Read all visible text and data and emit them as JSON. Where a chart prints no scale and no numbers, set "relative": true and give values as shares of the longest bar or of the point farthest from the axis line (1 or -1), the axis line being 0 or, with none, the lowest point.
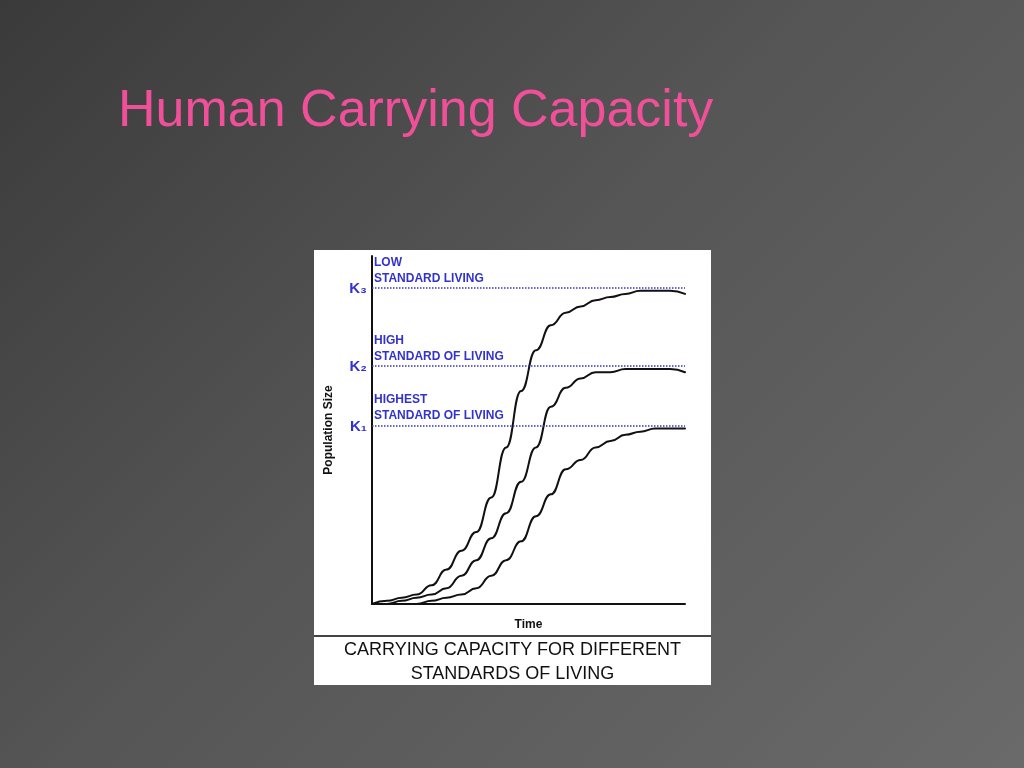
{
  "chart_data": {
    "type": "line",
    "title": "Human Carrying Capacity",
    "subtitle": "CARRYING CAPACITY FOR DIFFERENT\nSTANDARDS OF LIVING",
    "xlabel": "Time",
    "ylabel": "Population Size",
    "relative": true,
    "grid": false,
    "marker": "none",
    "line_style": "solid",
    "categories": [
      null,
      null,
      null,
      null,
      null,
      null,
      null,
      null,
      null,
      null,
      null,
      null,
      null,
      null,
      null,
      null,
      null,
      null,
      null,
      null,
      null,
      null
    ],
    "series": [
      {
        "color": "#111111",
        "values": [
          0,
          0.01,
          0.02,
          0.03,
          0.06,
          0.11,
          0.17,
          0.23,
          0.34,
          0.5,
          0.68,
          0.81,
          0.89,
          0.93,
          0.95,
          0.97,
          0.98,
          0.99,
          1,
          1,
          1,
          0.99
        ]
      },
      {
        "color": "#111111",
        "values": [
          0,
          0,
          0.01,
          0.02,
          0.03,
          0.05,
          0.09,
          0.14,
          0.21,
          0.29,
          0.39,
          0.5,
          0.63,
          0.69,
          0.72,
          0.74,
          0.74,
          0.75,
          0.75,
          0.75,
          0.75,
          0.74
        ]
      },
      {
        "color": "#111111",
        "values": [
          0,
          0,
          0,
          0,
          0.01,
          0.02,
          0.03,
          0.05,
          0.09,
          0.14,
          0.2,
          0.28,
          0.35,
          0.43,
          0.46,
          0.5,
          0.52,
          0.54,
          0.55,
          0.56,
          0.56,
          0.56
        ]
      }
    ],
    "ref_lines": [
      {
        "axis": "y",
        "value": 1.01,
        "label": "K₃",
        "color": "#3333cc",
        "line_style": "dotted"
      },
      {
        "axis": "y",
        "value": 0.76,
        "label": "K₂",
        "color": "#3333cc",
        "line_style": "dotted"
      },
      {
        "axis": "y",
        "value": 0.57,
        "label": "K₁",
        "color": "#3333cc",
        "line_style": "dotted"
      }
    ],
    "annotations": [
      {
        "text": "LOW\nSTANDARD LIVING",
        "y": 1.01
      },
      {
        "text": "HIGH\nSTANDARD OF LIVING",
        "y": 0.76
      },
      {
        "text": "HIGHEST\nSTANDARD OF LIVING",
        "y": 0.57
      }
    ]
  }
}
